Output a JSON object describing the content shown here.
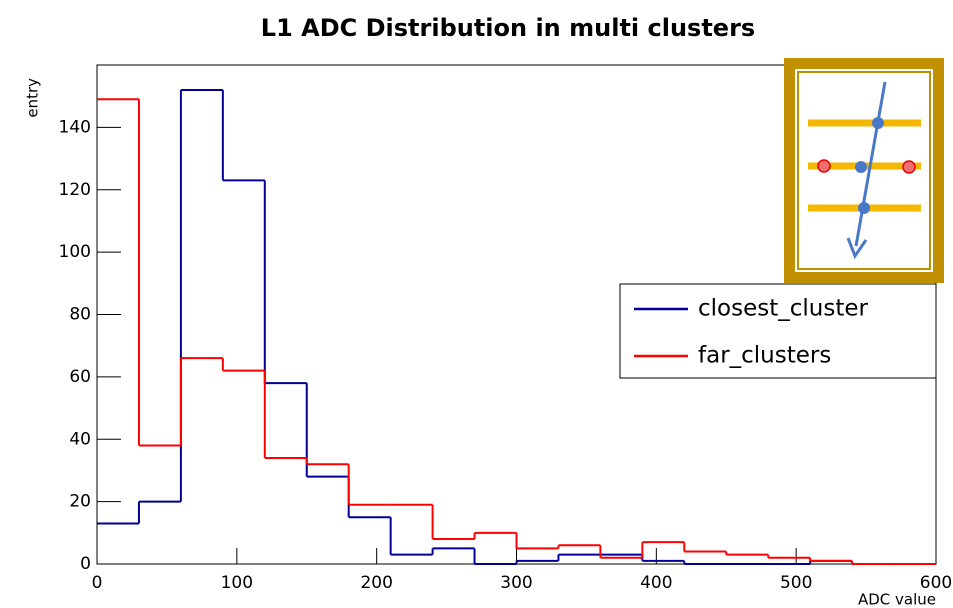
{
  "chart_data": {
    "type": "histogram",
    "title": "L1 ADC Distribution in multi clusters",
    "x_label": "ADC value",
    "y_label": "entry",
    "bins": [
      0,
      30,
      60,
      90,
      120,
      150,
      180,
      210,
      240,
      270,
      300,
      330,
      360,
      390,
      420,
      450,
      480,
      510,
      540,
      570,
      600
    ],
    "series": [
      {
        "name": "closest_cluster",
        "color": "#000099",
        "values": [
          13,
          20,
          152,
          123,
          58,
          28,
          15,
          3,
          5,
          0,
          1,
          3,
          3,
          1,
          0,
          0,
          0,
          1,
          0,
          0
        ]
      },
      {
        "name": "far_clusters",
        "color": "#ff0000",
        "values": [
          149,
          38,
          66,
          62,
          34,
          32,
          19,
          19,
          8,
          10,
          5,
          6,
          2,
          7,
          4,
          3,
          2,
          1,
          0,
          0
        ]
      }
    ],
    "xlim": [
      0,
      600
    ],
    "xticks": [
      0,
      100,
      200,
      300,
      400,
      500,
      600
    ],
    "ylim": [
      0,
      160
    ],
    "yticks": [
      0,
      20,
      40,
      60,
      80,
      100,
      120,
      140
    ]
  }
}
